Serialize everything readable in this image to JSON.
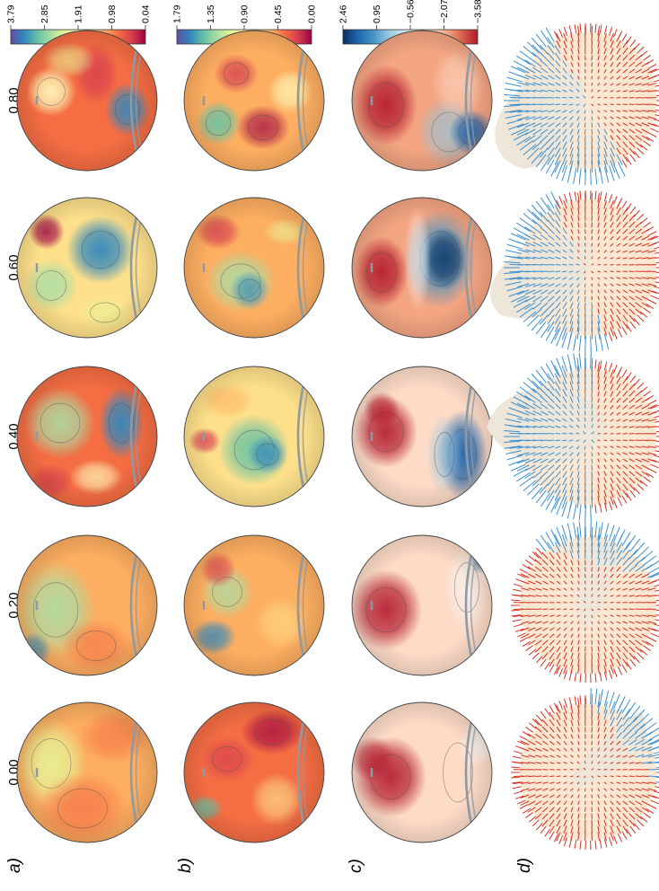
{
  "panels": {
    "a": "a)",
    "b": "b)",
    "c": "c)",
    "d": "d)"
  },
  "phases": [
    "0.00",
    "0.20",
    "0.40",
    "0.60",
    "0.80"
  ],
  "colorbars": {
    "a": {
      "ticks": [
        "3.79",
        "2.85",
        "1.91",
        "0.98",
        "0.04"
      ],
      "colormap": "Spectral",
      "reversed": false
    },
    "b": {
      "ticks": [
        "1.79",
        "1.35",
        "0.90",
        "0.45",
        "0.00"
      ],
      "colormap": "Spectral",
      "reversed": false
    },
    "c": {
      "ticks": [
        "2.46",
        "0.95",
        "−0.56",
        "−2.07",
        "−3.58"
      ],
      "colormap": "RdBu",
      "reversed": false
    }
  },
  "colors": {
    "spectral": [
      "#5e4fa2",
      "#3288bd",
      "#66c2a5",
      "#abdda4",
      "#e6f598",
      "#ffffbf",
      "#fee08b",
      "#fdae61",
      "#f46d43",
      "#d53e4f",
      "#9e0142"
    ],
    "rdbu": [
      "#b2182b",
      "#d6604d",
      "#f4a582",
      "#fddbc7",
      "#f7f7f7",
      "#d1e5f0",
      "#92c5de",
      "#4393c3",
      "#2166ac",
      "#053061"
    ],
    "vector_positive": "#d7301f",
    "vector_negative": "#3a8fd0",
    "marker": "#8c9aa5"
  }
}
